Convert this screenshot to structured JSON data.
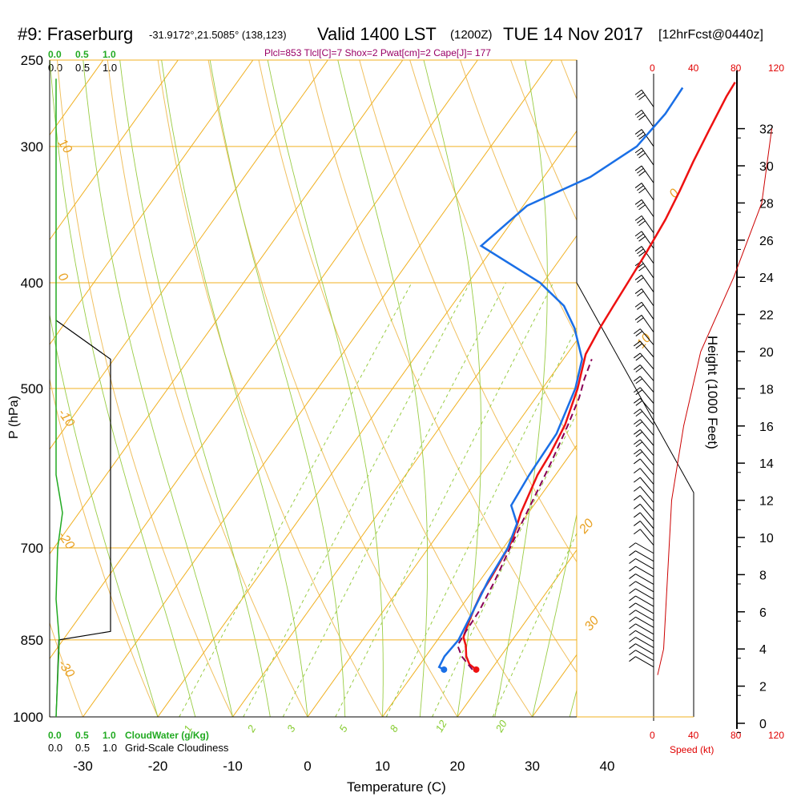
{
  "header": {
    "station": "#9: Fraserburg",
    "coords": "-31.9172°,21.5085° (138,123)",
    "valid": "Valid 1400 LST",
    "zulu": "(1200Z)",
    "date": "TUE 14 Nov 2017",
    "fcst": "[12hrFcst@0440z]",
    "diagnostics": "Plcl=853 Tlcl[C]=7 Shox=2 Pwat[cm]=2 Cape[J]= 177"
  },
  "legend_top": {
    "cloudwater_ticks": [
      "0.0",
      "0.5",
      "1.0"
    ],
    "cloudiness_ticks": [
      "0.0",
      "0.5",
      "1.0"
    ]
  },
  "legend_bottom": {
    "cloudwater_ticks": [
      "0.0",
      "0.5",
      "1.0"
    ],
    "cloudwater_label": "CloudWater (g/Kg)",
    "cloudiness_ticks": [
      "0.0",
      "0.5",
      "1.0"
    ],
    "cloudiness_label": "Grid-Scale Cloudiness"
  },
  "speed_axis": {
    "ticks": [
      "0",
      "40",
      "80",
      "120"
    ],
    "label": "Speed (kt)"
  },
  "height_axis": {
    "label": "Height (1000 Feet)",
    "ticks": [
      "0",
      "2",
      "4",
      "6",
      "8",
      "10",
      "12",
      "14",
      "16",
      "18",
      "20",
      "22",
      "24",
      "26",
      "28",
      "30",
      "32"
    ]
  },
  "isotherm_labels": [
    "0",
    "10",
    "20",
    "30"
  ],
  "dry_adiabat_labels": [
    "10",
    "0",
    "-10",
    "-20",
    "-30"
  ],
  "mixing_ratio_labels": [
    "1",
    "2",
    "3",
    "5",
    "8",
    "12",
    "20"
  ],
  "colors": {
    "temperature": "#ee1111",
    "dewpoint": "#1a6fe6",
    "parcel": "#880055",
    "isobar": "#f0b020",
    "dry_adiabat": "#f0c060",
    "moist_adiabat": "#99cc44",
    "mixing_ratio": "#99cc44",
    "cloudwater": "#22aa22",
    "cloudiness": "#000000",
    "wind_speed": "#cc0000"
  },
  "chart_data": {
    "type": "line",
    "title": "",
    "xlabel": "Temperature (C)",
    "ylabel": "P (hPa)",
    "x_ticks": [
      -30,
      -20,
      -10,
      0,
      10,
      20,
      30,
      40
    ],
    "y_ticks": [
      250,
      300,
      400,
      500,
      700,
      850,
      1000
    ],
    "xlim": [
      -34,
      36
    ],
    "ylim": [
      1000,
      250
    ],
    "log_pressure": true,
    "series": [
      {
        "key": "temperature",
        "pressure": [
          905,
          895,
          880,
          860,
          845,
          820,
          795,
          770,
          745,
          720,
          690,
          650,
          600,
          575,
          540,
          500,
          465,
          440,
          420,
          400,
          375,
          350,
          330,
          310,
          290,
          270,
          262
        ],
        "temp": [
          18.0,
          16.6,
          15.4,
          14.3,
          13.2,
          12.5,
          11.9,
          11.4,
          11.2,
          10.9,
          10.5,
          9.0,
          7.6,
          7.3,
          6.5,
          4.7,
          2.5,
          1.9,
          1.6,
          1.3,
          0.9,
          0.3,
          -0.5,
          -1.5,
          -2.4,
          -3.3,
          -3.5
        ]
      },
      {
        "key": "dewpoint",
        "pressure": [
          905,
          900,
          880,
          850,
          800,
          750,
          700,
          665,
          640,
          600,
          550,
          500,
          470,
          440,
          420,
          400,
          370,
          340,
          320,
          300,
          280,
          265
        ],
        "temp": [
          13.7,
          12.8,
          12.5,
          12.8,
          12.0,
          11.1,
          10.6,
          9.5,
          7.0,
          6.5,
          6.2,
          4.4,
          2.5,
          -1.5,
          -5.0,
          -10.4,
          -21.8,
          -19.5,
          -13.8,
          -10.5,
          -9.8,
          -10.0
        ]
      },
      {
        "key": "parcel",
        "pressure": [
          905,
          880,
          860,
          840,
          800,
          750,
          700,
          660,
          620,
          580,
          540,
          510,
          490,
          470
        ],
        "temp": [
          17.5,
          14.8,
          13.2,
          13.0,
          12.8,
          12.0,
          10.9,
          10.0,
          9.1,
          8.1,
          6.9,
          5.8,
          4.7,
          3.8
        ]
      }
    ],
    "surface_markers": [
      {
        "key": "temperature",
        "pressure": 905,
        "temp": 18.0
      },
      {
        "key": "dewpoint",
        "pressure": 905,
        "temp": 13.7
      }
    ],
    "cloudiness_fraction": [
      {
        "pressure": 433,
        "value": 0.0
      },
      {
        "pressure": 470,
        "value": 1.0
      },
      {
        "pressure": 835,
        "value": 1.0
      },
      {
        "pressure": 850,
        "value": 0.05
      },
      {
        "pressure": 1000,
        "value": 0.0
      }
    ],
    "wind_speed_profile": [
      {
        "height_kft": 2.6,
        "speed_kt": 4
      },
      {
        "height_kft": 4,
        "speed_kt": 10
      },
      {
        "height_kft": 8,
        "speed_kt": 14
      },
      {
        "height_kft": 12,
        "speed_kt": 18
      },
      {
        "height_kft": 16,
        "speed_kt": 30
      },
      {
        "height_kft": 20,
        "speed_kt": 47
      },
      {
        "height_kft": 24,
        "speed_kt": 80
      },
      {
        "height_kft": 28,
        "speed_kt": 108
      },
      {
        "height_kft": 32,
        "speed_kt": 118
      }
    ]
  }
}
